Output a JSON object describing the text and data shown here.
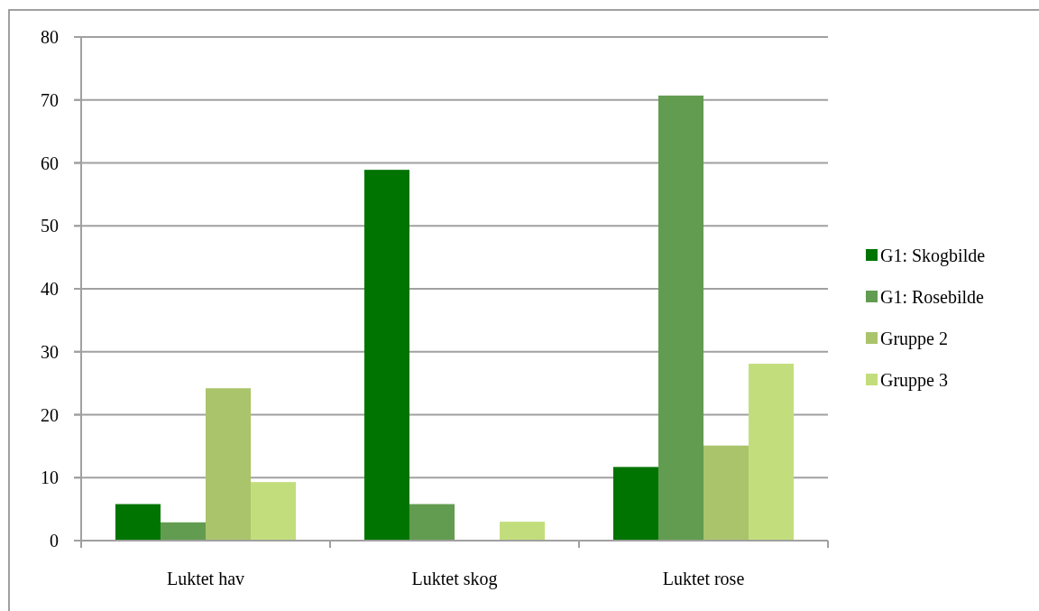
{
  "chart_data": {
    "type": "bar",
    "categories": [
      "Luktet hav",
      "Luktet skog",
      "Luktet rose"
    ],
    "series": [
      {
        "name": "G1: Skogbilde",
        "color": "#007400",
        "values": [
          5.8,
          58.9,
          11.7
        ]
      },
      {
        "name": "G1: Rosebilde",
        "color": "#629c50",
        "values": [
          2.9,
          5.8,
          70.7
        ]
      },
      {
        "name": "Gruppe 2",
        "color": "#aac46c",
        "values": [
          24.2,
          0,
          15.1
        ]
      },
      {
        "name": "Gruppe 3",
        "color": "#c2de7c",
        "values": [
          9.3,
          3.0,
          28.1
        ]
      }
    ],
    "ylim": [
      0,
      80
    ],
    "yticks": [
      0,
      10,
      20,
      30,
      40,
      50,
      60,
      70,
      80
    ],
    "grid": "y",
    "legend": "right"
  }
}
